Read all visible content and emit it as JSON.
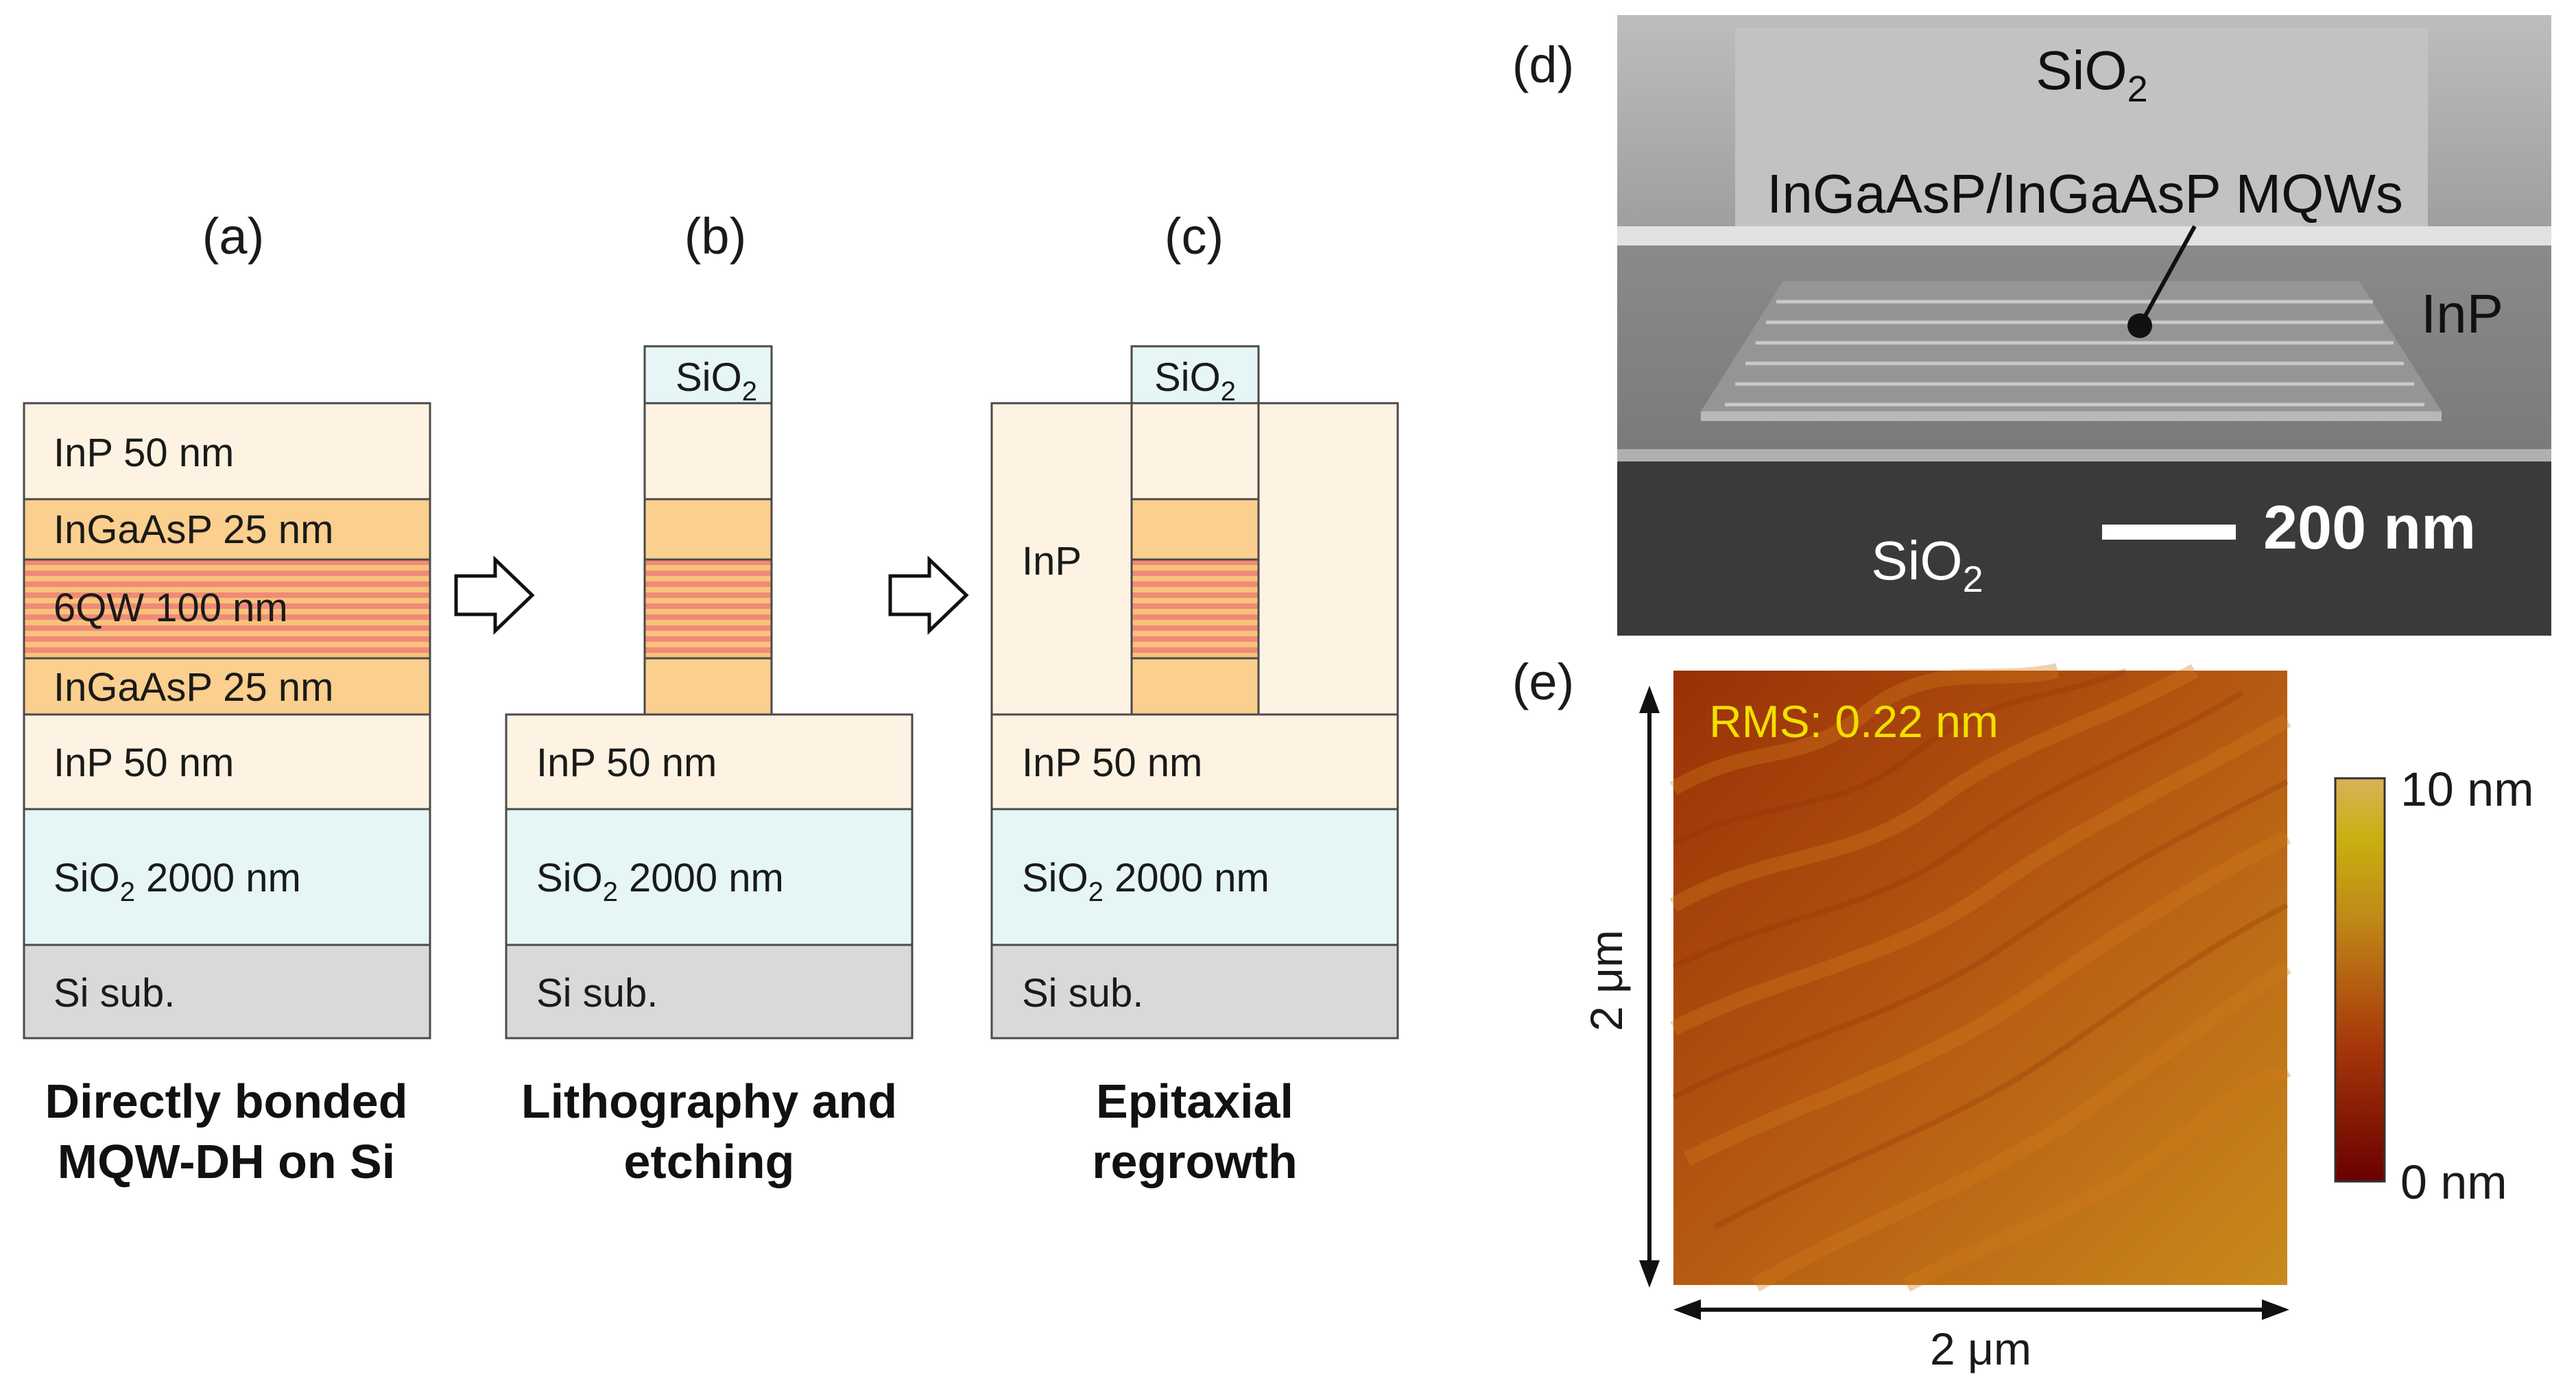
{
  "colors": {
    "inp": "#fef3e2",
    "ingaasp": "#fbcf8d",
    "mqw_a": "#f08a78",
    "mqw_b": "#f8c27a",
    "sio2": "#e6f6f6",
    "si": "#d9d9d9",
    "afm_low": "#6a0000",
    "afm_mid": "#c05d10",
    "afm_high": "#d8b230",
    "rms_text": "#f0e000"
  },
  "panel_a": {
    "label": "(a)",
    "layers": {
      "inp_top": "InP 50 nm",
      "ingaasp_top": "InGaAsP 25 nm",
      "mqw": "6QW 100 nm",
      "ingaasp_bottom": "InGaAsP 25 nm",
      "inp_bottom": "InP 50 nm",
      "sio2_prefix": "SiO",
      "sio2_sub": "2",
      "sio2_suffix": " 2000 nm",
      "si": "Si sub."
    },
    "caption_line1": "Directly bonded",
    "caption_line2": "MQW-DH on Si"
  },
  "panel_b": {
    "label": "(b)",
    "mask_prefix": "SiO",
    "mask_sub": "2",
    "inp": "InP 50 nm",
    "sio2_prefix": "SiO",
    "sio2_sub": "2",
    "sio2_suffix": " 2000 nm",
    "si": "Si sub.",
    "caption_line1": "Lithography and",
    "caption_line2": "etching"
  },
  "panel_c": {
    "label": "(c)",
    "mask_prefix": "SiO",
    "mask_sub": "2",
    "regrowth": "InP",
    "inp": "InP 50 nm",
    "sio2_prefix": "SiO",
    "sio2_sub": "2",
    "sio2_suffix": " 2000 nm",
    "si": "Si sub.",
    "caption_line1": "Epitaxial",
    "caption_line2": "regrowth"
  },
  "panel_d": {
    "label": "(d)",
    "sio2_top_prefix": "SiO",
    "sio2_top_sub": "2",
    "mqw_label": "InGaAsP/InGaAsP MQWs",
    "inp": "InP",
    "sio2_bottom_prefix": "SiO",
    "sio2_bottom_sub": "2",
    "scale": "200 nm"
  },
  "panel_e": {
    "label": "(e)",
    "rms": "RMS: 0.22 nm",
    "y_extent": "2 μm",
    "x_extent": "2 μm",
    "colorbar_max": "10 nm",
    "colorbar_min": "0 nm"
  }
}
